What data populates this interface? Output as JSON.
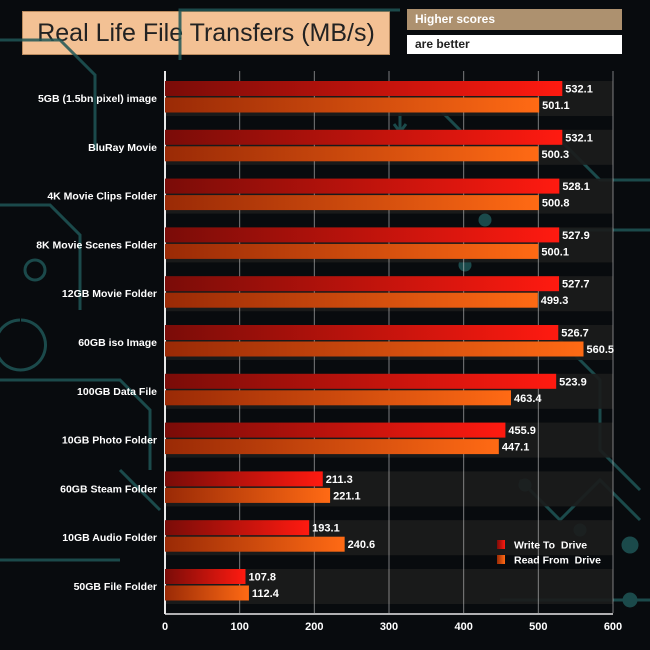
{
  "header": {
    "title": "Real Life File Transfers (MB/s)",
    "note_line1": "Higher scores",
    "note_line2": "are better"
  },
  "chart_data": {
    "type": "bar",
    "orientation": "horizontal",
    "title": "Real Life File Transfers (MB/s)",
    "xlabel": "",
    "ylabel": "",
    "xlim": [
      0,
      600
    ],
    "x_ticks": [
      0,
      100,
      200,
      300,
      400,
      500,
      600
    ],
    "categories": [
      "5GB (1.5bn pixel) image",
      "BluRay Movie",
      "4K Movie Clips Folder",
      "8K Movie Scenes Folder",
      "12GB Movie Folder",
      "60GB iso Image",
      "100GB Data File",
      "10GB Photo Folder",
      "60GB Steam Folder",
      "10GB Audio Folder",
      "50GB File Folder"
    ],
    "series": [
      {
        "name": "Write To  Drive",
        "color": "#e81a10",
        "values": [
          532.1,
          532.1,
          528.1,
          527.9,
          527.7,
          526.7,
          523.9,
          455.9,
          211.3,
          193.1,
          107.8
        ]
      },
      {
        "name": "Read From  Drive",
        "color": "#f06414",
        "values": [
          501.1,
          500.3,
          500.8,
          500.1,
          499.3,
          560.5,
          463.4,
          447.1,
          221.1,
          240.6,
          112.4
        ]
      }
    ],
    "legend_position": "bottom-right"
  },
  "colors": {
    "background": "#080b0e",
    "circuit": "#1f5656",
    "grid": "#d8d8d8",
    "row_band": "#1c1c1c"
  }
}
